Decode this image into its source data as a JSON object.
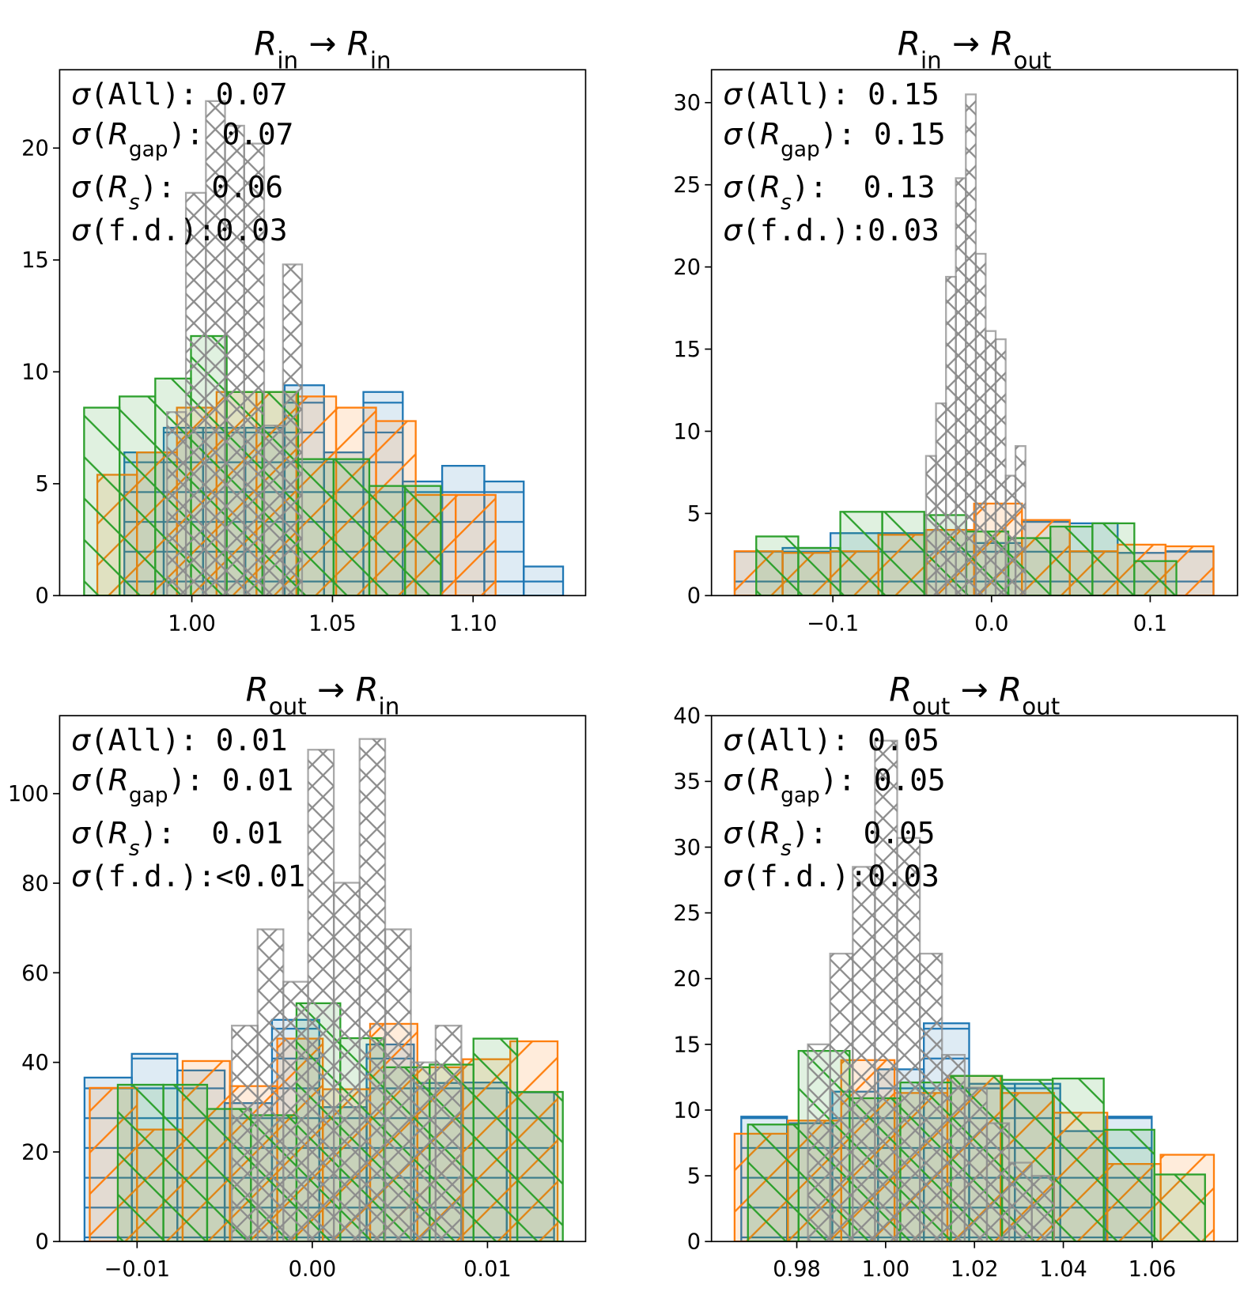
{
  "chart_data": [
    {
      "type": "histogram",
      "title": [
        {
          "text": "R",
          "style": "italic"
        },
        {
          "text": "in",
          "style": "sub"
        },
        {
          "text": " → ",
          "style": "normal"
        },
        {
          "text": "R",
          "style": "italic"
        },
        {
          "text": "in",
          "style": "sub"
        }
      ],
      "annotations": [
        [
          {
            "text": "σ",
            "style": "italic"
          },
          {
            "text": "(All): 0.07",
            "style": "mono"
          }
        ],
        [
          {
            "text": "σ",
            "style": "italic"
          },
          {
            "text": "(",
            "style": "mono"
          },
          {
            "text": "R",
            "style": "italic"
          },
          {
            "text": "gap",
            "style": "sub"
          },
          {
            "text": "): 0.07",
            "style": "mono"
          }
        ],
        [
          {
            "text": "σ",
            "style": "italic"
          },
          {
            "text": "(",
            "style": "mono"
          },
          {
            "text": "R",
            "style": "italic"
          },
          {
            "text": "s",
            "style": "sub-italic"
          },
          {
            "text": "):  0.06",
            "style": "mono"
          }
        ],
        [
          {
            "text": "σ",
            "style": "italic"
          },
          {
            "text": "(f.d.):0.03",
            "style": "mono"
          }
        ]
      ],
      "xlim": [
        0.953,
        1.14
      ],
      "ylim": [
        0,
        23.5
      ],
      "xticks": [
        {
          "value": 1.0,
          "label": "1.00"
        },
        1.05,
        {
          "value": 1.1,
          "label": "1.10"
        }
      ],
      "yticks": [
        0,
        5,
        10,
        15,
        20
      ],
      "series": [
        {
          "color": "#1f77b4",
          "hatch": "-",
          "filled": true,
          "bins": [
            0.976,
            0.99,
            1.004,
            1.019,
            1.033,
            1.047,
            1.061,
            1.075,
            1.089,
            1.104,
            1.118,
            1.132
          ],
          "values": [
            6.4,
            7.5,
            7.5,
            7.5,
            9.4,
            6.4,
            9.1,
            5.1,
            5.8,
            5.1,
            1.3
          ]
        },
        {
          "color": "#ff7f0e",
          "hatch": "/",
          "filled": true,
          "bins": [
            0.9664,
            0.9805,
            0.9947,
            1.0088,
            1.023,
            1.0372,
            1.0513,
            1.0655,
            1.0796,
            1.0938,
            1.108
          ],
          "values": [
            5.4,
            6.4,
            8.4,
            9.1,
            9.1,
            8.9,
            8.4,
            7.8,
            4.5,
            4.5
          ]
        },
        {
          "color": "#2ca02c",
          "hatch": "\\",
          "filled": true,
          "bins": [
            0.9617,
            0.9743,
            0.987,
            0.9997,
            1.0124,
            1.0251,
            1.0378,
            1.0504,
            1.0631,
            1.0758,
            1.0885
          ],
          "values": [
            8.4,
            8.9,
            9.7,
            11.6,
            9.1,
            9.1,
            6.1,
            6.1,
            4.9,
            4.9
          ]
        },
        {
          "color": "#8c8c8c",
          "hatch": "x",
          "filled": false,
          "bins": [
            0.9912,
            0.9979,
            1.005,
            1.0118,
            1.0186,
            1.0257,
            1.0324,
            1.0392
          ],
          "values": [
            8.2,
            18.0,
            22.1,
            21.0,
            20.2,
            7.6,
            14.8
          ]
        }
      ]
    },
    {
      "type": "histogram",
      "title": [
        {
          "text": "R",
          "style": "italic"
        },
        {
          "text": "in",
          "style": "sub"
        },
        {
          "text": " → ",
          "style": "normal"
        },
        {
          "text": "R",
          "style": "italic"
        },
        {
          "text": "out",
          "style": "sub"
        }
      ],
      "annotations": [
        [
          {
            "text": "σ",
            "style": "italic"
          },
          {
            "text": "(All): 0.15",
            "style": "mono"
          }
        ],
        [
          {
            "text": "σ",
            "style": "italic"
          },
          {
            "text": "(",
            "style": "mono"
          },
          {
            "text": "R",
            "style": "italic"
          },
          {
            "text": "gap",
            "style": "sub"
          },
          {
            "text": "): 0.15",
            "style": "mono"
          }
        ],
        [
          {
            "text": "σ",
            "style": "italic"
          },
          {
            "text": "(",
            "style": "mono"
          },
          {
            "text": "R",
            "style": "italic"
          },
          {
            "text": "s",
            "style": "sub-italic"
          },
          {
            "text": "):  0.13",
            "style": "mono"
          }
        ],
        [
          {
            "text": "σ",
            "style": "italic"
          },
          {
            "text": "(f.d.):0.03",
            "style": "mono"
          }
        ]
      ],
      "xlim": [
        -0.1765,
        0.155
      ],
      "ylim": [
        0,
        32.0
      ],
      "xticks": [
        {
          "value": -0.1,
          "label": "−0.1"
        },
        {
          "value": 0.0,
          "label": "0.0"
        },
        0.1
      ],
      "yticks": [
        0,
        5,
        10,
        15,
        20,
        25,
        30
      ],
      "series": [
        {
          "color": "#1f77b4",
          "hatch": "-",
          "filled": true,
          "bins": [
            -0.1619,
            -0.1317,
            -0.1015,
            -0.0713,
            -0.0412,
            -0.011,
            0.0192,
            0.0493,
            0.0795,
            0.1097,
            0.1399
          ],
          "values": [
            2.7,
            2.9,
            3.8,
            3.8,
            4.0,
            3.2,
            4.5,
            4.4,
            2.6,
            2.7
          ]
        },
        {
          "color": "#ff7f0e",
          "hatch": "/",
          "filled": true,
          "bins": [
            -0.1619,
            -0.1317,
            -0.1015,
            -0.0713,
            -0.0412,
            -0.011,
            0.0192,
            0.0493,
            0.0795,
            0.1097,
            0.1399
          ],
          "values": [
            2.7,
            2.6,
            2.7,
            3.7,
            4.0,
            5.6,
            4.6,
            2.7,
            3.1,
            3.0
          ]
        },
        {
          "color": "#2ca02c",
          "hatch": "\\",
          "filled": true,
          "bins": [
            -0.1483,
            -0.1218,
            -0.0953,
            -0.0689,
            -0.0424,
            -0.0159,
            0.0106,
            0.0371,
            0.0636,
            0.09,
            0.1165
          ],
          "values": [
            3.6,
            2.9,
            5.1,
            5.1,
            4.9,
            3.9,
            3.5,
            4.2,
            4.4,
            2.1
          ]
        },
        {
          "color": "#8c8c8c",
          "hatch": "x",
          "filled": false,
          "bins": [
            -0.0413,
            -0.035,
            -0.0287,
            -0.0225,
            -0.0162,
            -0.0099,
            -0.0037,
            0.0026,
            0.0089,
            0.0151,
            0.0214
          ],
          "values": [
            8.5,
            11.7,
            19.4,
            25.4,
            30.5,
            20.8,
            16.1,
            15.6,
            7.3,
            9.1
          ]
        }
      ]
    },
    {
      "type": "histogram",
      "title": [
        {
          "text": "R",
          "style": "italic"
        },
        {
          "text": "out",
          "style": "sub"
        },
        {
          "text": " → ",
          "style": "normal"
        },
        {
          "text": "R",
          "style": "italic"
        },
        {
          "text": "in",
          "style": "sub"
        }
      ],
      "annotations": [
        [
          {
            "text": "σ",
            "style": "italic"
          },
          {
            "text": "(All): 0.01",
            "style": "mono"
          }
        ],
        [
          {
            "text": "σ",
            "style": "italic"
          },
          {
            "text": "(",
            "style": "mono"
          },
          {
            "text": "R",
            "style": "italic"
          },
          {
            "text": "gap",
            "style": "sub"
          },
          {
            "text": "): 0.01",
            "style": "mono"
          }
        ],
        [
          {
            "text": "σ",
            "style": "italic"
          },
          {
            "text": "(",
            "style": "mono"
          },
          {
            "text": "R",
            "style": "italic"
          },
          {
            "text": "s",
            "style": "sub-italic"
          },
          {
            "text": "):  0.01",
            "style": "mono"
          }
        ],
        [
          {
            "text": "σ",
            "style": "italic"
          },
          {
            "text": "(f.d.):<0.01",
            "style": "mono"
          }
        ]
      ],
      "xlim": [
        -0.01442,
        0.0156
      ],
      "ylim": [
        0,
        117.4
      ],
      "xticks": [
        {
          "value": -0.01,
          "label": "−0.01"
        },
        {
          "value": 0.0,
          "label": "0.00"
        },
        0.01
      ],
      "yticks": [
        0,
        20,
        40,
        60,
        80,
        100
      ],
      "series": [
        {
          "color": "#1f77b4",
          "hatch": "-",
          "filled": true,
          "bins": [
            -0.013,
            -0.0103,
            -0.0077,
            -0.005,
            -0.0023,
            0.0004,
            0.0031,
            0.0058,
            0.0085,
            0.0111,
            0.0138
          ],
          "values": [
            36.6,
            41.9,
            38.2,
            30.9,
            49.5,
            30.0,
            44.0,
            35.4,
            35.5,
            33.3
          ]
        },
        {
          "color": "#ff7f0e",
          "hatch": "/",
          "filled": true,
          "bins": [
            -0.0127,
            -0.01,
            -0.0074,
            -0.0047,
            -0.002,
            0.0006,
            0.0033,
            0.006,
            0.0086,
            0.0113,
            0.014
          ],
          "values": [
            34.3,
            25.0,
            40.3,
            34.7,
            45.3,
            34.0,
            48.6,
            38.9,
            40.7,
            44.7
          ]
        },
        {
          "color": "#2ca02c",
          "hatch": "\\",
          "filled": true,
          "bins": [
            -0.0111,
            -0.0085,
            -0.006,
            -0.0035,
            -0.0009,
            0.0016,
            0.0041,
            0.0067,
            0.0092,
            0.0117,
            0.0143
          ],
          "values": [
            35.0,
            35.0,
            29.6,
            28.2,
            53.2,
            45.4,
            38.9,
            39.5,
            45.3,
            33.4
          ]
        },
        {
          "color": "#8c8c8c",
          "hatch": "x",
          "filled": false,
          "bins": [
            -0.00459,
            -0.00312,
            -0.00165,
            -0.00024,
            0.00123,
            0.0027,
            0.00416,
            0.00563,
            0.00704,
            0.00851
          ],
          "values": [
            48.2,
            69.7,
            58.0,
            109.8,
            80.1,
            112.2,
            69.7,
            40.0,
            48.2
          ]
        }
      ]
    },
    {
      "type": "histogram",
      "title": [
        {
          "text": "R",
          "style": "italic"
        },
        {
          "text": "out",
          "style": "sub"
        },
        {
          "text": " → ",
          "style": "normal"
        },
        {
          "text": "R",
          "style": "italic"
        },
        {
          "text": "out",
          "style": "sub"
        }
      ],
      "annotations": [
        [
          {
            "text": "σ",
            "style": "italic"
          },
          {
            "text": "(All): 0.05",
            "style": "mono"
          }
        ],
        [
          {
            "text": "σ",
            "style": "italic"
          },
          {
            "text": "(",
            "style": "mono"
          },
          {
            "text": "R",
            "style": "italic"
          },
          {
            "text": "gap",
            "style": "sub"
          },
          {
            "text": "): 0.05",
            "style": "mono"
          }
        ],
        [
          {
            "text": "σ",
            "style": "italic"
          },
          {
            "text": "(",
            "style": "mono"
          },
          {
            "text": "R",
            "style": "italic"
          },
          {
            "text": "s",
            "style": "sub-italic"
          },
          {
            "text": "):  0.05",
            "style": "mono"
          }
        ],
        [
          {
            "text": "σ",
            "style": "italic"
          },
          {
            "text": "(f.d.):0.03",
            "style": "mono"
          }
        ]
      ],
      "xlim": [
        0.9608,
        1.0792
      ],
      "ylim": [
        0,
        40
      ],
      "xticks": [
        0.98,
        {
          "value": 1.0,
          "label": "1.00"
        },
        1.02,
        1.04,
        1.06
      ],
      "yticks": [
        0,
        5,
        10,
        15,
        20,
        25,
        30,
        35,
        40
      ],
      "series": [
        {
          "color": "#1f77b4",
          "hatch": "-",
          "filled": true,
          "bins": [
            0.9675,
            0.9778,
            0.988,
            0.9983,
            1.0086,
            1.0188,
            1.0291,
            1.0393,
            1.0496,
            1.0599
          ],
          "values": [
            9.5,
            9.0,
            11.4,
            13.1,
            16.6,
            12.0,
            12.0,
            8.4,
            9.5
          ]
        },
        {
          "color": "#ff7f0e",
          "hatch": "/",
          "filled": true,
          "bins": [
            0.966,
            0.978,
            0.99,
            1.002,
            1.0139,
            1.0259,
            1.0379,
            1.0499,
            1.0619,
            1.0739
          ],
          "values": [
            8.2,
            9.2,
            13.8,
            11.3,
            12.6,
            11.3,
            9.8,
            5.9,
            6.6
          ]
        },
        {
          "color": "#2ca02c",
          "hatch": "\\",
          "filled": true,
          "bins": [
            0.969,
            0.9804,
            0.9919,
            1.0033,
            1.0147,
            1.0262,
            1.0376,
            1.0491,
            1.0605,
            1.0719
          ],
          "values": [
            8.9,
            14.5,
            10.9,
            12.1,
            12.6,
            12.3,
            12.4,
            8.5,
            5.1
          ]
        },
        {
          "color": "#8c8c8c",
          "hatch": "x",
          "filled": false,
          "bins": [
            0.9825,
            0.9875,
            0.9926,
            0.9976,
            1.0026,
            1.0077,
            1.0127,
            1.0178,
            1.0228,
            1.0278,
            1.0329,
            1.0379
          ],
          "values": [
            15.0,
            21.9,
            28.5,
            38.1,
            30.7,
            21.9,
            14.2,
            11.7,
            9.0,
            6.0,
            5.0
          ]
        }
      ]
    }
  ]
}
